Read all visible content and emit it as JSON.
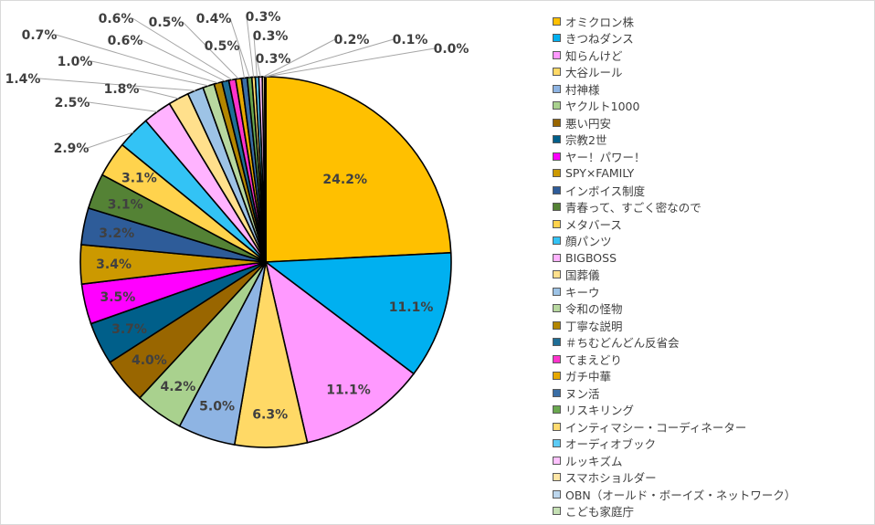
{
  "chart_data": {
    "type": "pie",
    "title": "",
    "legend_position": "right",
    "slices": [
      {
        "label": "オミクロン株",
        "value": 24.2,
        "display": "24.2%",
        "color": "#FFC000"
      },
      {
        "label": "きつねダンス",
        "value": 11.1,
        "display": "11.1%",
        "color": "#00B0F0"
      },
      {
        "label": "知らんけど",
        "value": 11.1,
        "display": "11.1%",
        "color": "#FF99FF"
      },
      {
        "label": "大谷ルール",
        "value": 6.3,
        "display": "6.3%",
        "color": "#FFD966"
      },
      {
        "label": "村神様",
        "value": 5.0,
        "display": "5.0%",
        "color": "#8EB4E3"
      },
      {
        "label": "ヤクルト1000",
        "value": 4.2,
        "display": "4.2%",
        "color": "#A9D18E"
      },
      {
        "label": "悪い円安",
        "value": 4.0,
        "display": "4.0%",
        "color": "#996600"
      },
      {
        "label": "宗教2世",
        "value": 3.7,
        "display": "3.7%",
        "color": "#005F8A"
      },
      {
        "label": "ヤー！パワー！",
        "value": 3.5,
        "display": "3.5%",
        "color": "#FF00FF"
      },
      {
        "label": "SPY×FAMILY",
        "value": 3.4,
        "display": "3.4%",
        "color": "#CC9900"
      },
      {
        "label": "インボイス制度",
        "value": 3.2,
        "display": "3.2%",
        "color": "#2E5C99"
      },
      {
        "label": "青春って、すごく密なので",
        "value": 3.1,
        "display": "3.1%",
        "color": "#548235"
      },
      {
        "label": "メタバース",
        "value": 3.1,
        "display": "3.1%",
        "color": "#FFD34D"
      },
      {
        "label": "顔パンツ",
        "value": 2.9,
        "display": "2.9%",
        "color": "#33C3F5"
      },
      {
        "label": "BIGBOSS",
        "value": 2.5,
        "display": "2.5%",
        "color": "#FFB3FF"
      },
      {
        "label": "国葬儀",
        "value": 1.8,
        "display": "1.8%",
        "color": "#FFE08C"
      },
      {
        "label": "キーウ",
        "value": 1.4,
        "display": "1.4%",
        "color": "#9DC3E6"
      },
      {
        "label": "令和の怪物",
        "value": 1.0,
        "display": "1.0%",
        "color": "#B8D8A0"
      },
      {
        "label": "丁寧な説明",
        "value": 0.7,
        "display": "0.7%",
        "color": "#B38600"
      },
      {
        "label": "＃ちむどんどん反省会",
        "value": 0.6,
        "display": "0.6%",
        "color": "#1F6E96"
      },
      {
        "label": "てまえどり",
        "value": 0.6,
        "display": "0.6%",
        "color": "#FF33CC"
      },
      {
        "label": "ガチ中華",
        "value": 0.5,
        "display": "0.5%",
        "color": "#E6A800"
      },
      {
        "label": "ヌン活",
        "value": 0.5,
        "display": "0.5%",
        "color": "#3A6EA5"
      },
      {
        "label": "リスキリング",
        "value": 0.4,
        "display": "0.4%",
        "color": "#6AA84F"
      },
      {
        "label": "インティマシー・コーディネーター",
        "value": 0.3,
        "display": "0.3%",
        "color": "#FFDB70"
      },
      {
        "label": "オーディオブック",
        "value": 0.3,
        "display": "0.3%",
        "color": "#5CCBF5"
      },
      {
        "label": "ルッキズム",
        "value": 0.3,
        "display": "0.3%",
        "color": "#FFC2FF"
      },
      {
        "label": "スマホショルダー",
        "value": 0.2,
        "display": "0.2%",
        "color": "#FFE6A6"
      },
      {
        "label": "OBN（オールド・ボーイズ・ネットワーク）",
        "value": 0.1,
        "display": "0.1%",
        "color": "#BDD7EE"
      },
      {
        "label": "こども家庭庁",
        "value": 0.0,
        "display": "0.0%",
        "color": "#C5E0B4"
      }
    ]
  }
}
